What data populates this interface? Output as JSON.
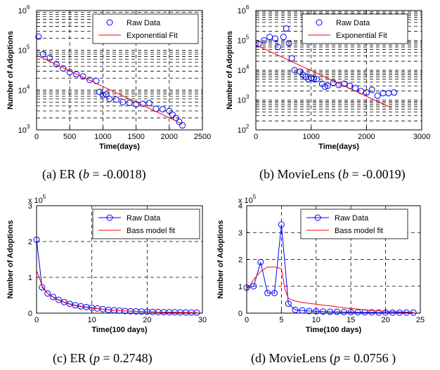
{
  "colors": {
    "raw": "#0000ff",
    "fit": "#ff0000",
    "grid": "#000000"
  },
  "chart_data": [
    {
      "id": "a",
      "type": "scatter",
      "yscale": "log",
      "xlabel": "Time(days)",
      "ylabel": "Number of Adoptions",
      "xlim": [
        0,
        2500
      ],
      "ylim": [
        1000,
        1000000
      ],
      "xticks": [
        "0",
        "500",
        "1000",
        "1500",
        "2000",
        "2500"
      ],
      "yticks": [
        {
          "base": "10",
          "exp": "3"
        },
        {
          "base": "10",
          "exp": "4"
        },
        {
          "base": "10",
          "exp": "5"
        },
        {
          "base": "10",
          "exp": "6"
        }
      ],
      "legend": [
        "Raw Data",
        "Exponential Fit"
      ],
      "series": [
        {
          "name": "Raw Data",
          "marker": "circle",
          "x": [
            30,
            100,
            200,
            300,
            400,
            500,
            600,
            700,
            800,
            900,
            950,
            1000,
            1050,
            1100,
            1200,
            1300,
            1400,
            1500,
            1600,
            1700,
            1800,
            1900,
            2000,
            2050,
            2100,
            2150,
            2200
          ],
          "y": [
            220000,
            80000,
            65000,
            45000,
            35000,
            28000,
            25000,
            22000,
            18000,
            17000,
            9000,
            7500,
            7800,
            6000,
            5800,
            5000,
            4800,
            4400,
            4500,
            4700,
            3400,
            3300,
            3000,
            2400,
            2000,
            1600,
            1300
          ]
        },
        {
          "name": "Exponential Fit",
          "line": true,
          "x": [
            0,
            2200
          ],
          "y": [
            75000,
            1400
          ]
        }
      ]
    },
    {
      "id": "b",
      "type": "scatter",
      "yscale": "log",
      "xlabel": "Time(days)",
      "ylabel": "Number of Adoptions",
      "xlim": [
        0,
        3000
      ],
      "ylim": [
        100,
        1000000
      ],
      "xticks": [
        "0",
        "1000",
        "2000",
        "3000"
      ],
      "yticks": [
        {
          "base": "10",
          "exp": "2"
        },
        {
          "base": "10",
          "exp": "3"
        },
        {
          "base": "10",
          "exp": "4"
        },
        {
          "base": "10",
          "exp": "5"
        },
        {
          "base": "10",
          "exp": "6"
        }
      ],
      "legend": [
        "Raw Data",
        "Exponential Fit"
      ],
      "series": [
        {
          "name": "Raw Data",
          "marker": "circle",
          "x": [
            50,
            150,
            250,
            350,
            400,
            500,
            550,
            600,
            650,
            700,
            800,
            850,
            900,
            950,
            1000,
            1050,
            1100,
            1200,
            1250,
            1300,
            1400,
            1500,
            1600,
            1700,
            1800,
            1900,
            2000,
            2100,
            2200,
            2300,
            2400,
            2500
          ],
          "y": [
            75000,
            100000,
            130000,
            115000,
            60000,
            130000,
            250000,
            80000,
            25000,
            10000,
            9000,
            7000,
            6000,
            5000,
            5500,
            5200,
            5000,
            3500,
            2800,
            3000,
            3800,
            3200,
            3500,
            3000,
            2500,
            2000,
            1800,
            2200,
            1400,
            1700,
            1700,
            1800
          ]
        },
        {
          "name": "Exponential Fit",
          "line": true,
          "x": [
            0,
            2450
          ],
          "y": [
            70000,
            550
          ]
        }
      ]
    },
    {
      "id": "c",
      "type": "line",
      "xlabel": "Time(100 days)",
      "ylabel": "Number of Adoptions",
      "xlim": [
        0,
        30
      ],
      "ylim": [
        0,
        3
      ],
      "xticks": [
        "0",
        "10",
        "20",
        "30"
      ],
      "yticks": [
        "0",
        "1",
        "2",
        "3"
      ],
      "yexponent": {
        "base": "x 10",
        "exp": "5"
      },
      "legend": [
        "Raw Data",
        "Bass model fit"
      ],
      "series": [
        {
          "name": "Raw Data",
          "marker": "circle",
          "line": true,
          "x": [
            0,
            1,
            2,
            3,
            4,
            5,
            6,
            7,
            8,
            9,
            10,
            11,
            12,
            13,
            14,
            15,
            16,
            17,
            18,
            19,
            20,
            21,
            22,
            23,
            24,
            25,
            26,
            27,
            28,
            29
          ],
          "y": [
            2.05,
            0.72,
            0.55,
            0.45,
            0.37,
            0.31,
            0.26,
            0.22,
            0.19,
            0.17,
            0.15,
            0.13,
            0.11,
            0.09,
            0.08,
            0.07,
            0.06,
            0.055,
            0.05,
            0.045,
            0.04,
            0.035,
            0.03,
            0.028,
            0.025,
            0.022,
            0.02,
            0.018,
            0.016,
            0.014
          ]
        },
        {
          "name": "Bass model fit",
          "line": true,
          "x": [
            0,
            0.5,
            1,
            2,
            3,
            4,
            5,
            6,
            7,
            8,
            9,
            10,
            12,
            14,
            16,
            18,
            20,
            22,
            24,
            26,
            28,
            29
          ],
          "y": [
            1.2,
            1.0,
            0.75,
            0.55,
            0.44,
            0.36,
            0.3,
            0.25,
            0.21,
            0.18,
            0.16,
            0.14,
            0.11,
            0.08,
            0.06,
            0.05,
            0.04,
            0.03,
            0.025,
            0.02,
            0.015,
            0.012
          ]
        }
      ]
    },
    {
      "id": "d",
      "type": "line",
      "xlabel": "Time(100 days)",
      "ylabel": "Number of Adoptions",
      "xlim": [
        0,
        25
      ],
      "ylim": [
        0,
        4
      ],
      "xticks": [
        "0",
        "5",
        "10",
        "15",
        "20",
        "25"
      ],
      "yticks": [
        "0",
        "1",
        "2",
        "3",
        "4"
      ],
      "yexponent": {
        "base": "x 10",
        "exp": "5"
      },
      "legend": [
        "Raw Data",
        "Bass model fit"
      ],
      "series": [
        {
          "name": "Raw Data",
          "marker": "circle",
          "line": true,
          "x": [
            0,
            1,
            2,
            3,
            4,
            5,
            6,
            7,
            8,
            9,
            10,
            11,
            12,
            13,
            14,
            15,
            16,
            17,
            18,
            19,
            20,
            21,
            22,
            23,
            24
          ],
          "y": [
            0.95,
            1.0,
            1.9,
            0.75,
            0.75,
            3.3,
            0.35,
            0.12,
            0.1,
            0.08,
            0.07,
            0.06,
            0.05,
            0.05,
            0.04,
            0.04,
            0.03,
            0.03,
            0.03,
            0.02,
            0.02,
            0.02,
            0.02,
            0.02,
            0.02
          ]
        },
        {
          "name": "Bass model fit",
          "line": true,
          "x": [
            0,
            1,
            2,
            3,
            4,
            5,
            5.5,
            6,
            7,
            8,
            10,
            12,
            14,
            16,
            18,
            20,
            22,
            24
          ],
          "y": [
            0.85,
            1.25,
            1.55,
            1.72,
            1.72,
            1.65,
            0.9,
            0.55,
            0.45,
            0.4,
            0.33,
            0.27,
            0.2,
            0.15,
            0.1,
            0.07,
            0.05,
            0.03
          ]
        }
      ]
    }
  ],
  "captions": [
    {
      "pre": "(a)   ER (",
      "var": "b",
      "post": " = -0.0018)"
    },
    {
      "pre": "(b) MovieLens (",
      "var": "b",
      "post": " = -0.0019)"
    },
    {
      "pre": "(c) ER (",
      "var": "p",
      "post": " = 0.2748)"
    },
    {
      "pre": "(d) MovieLens (",
      "var": "p",
      "post": " = 0.0756 )"
    }
  ]
}
